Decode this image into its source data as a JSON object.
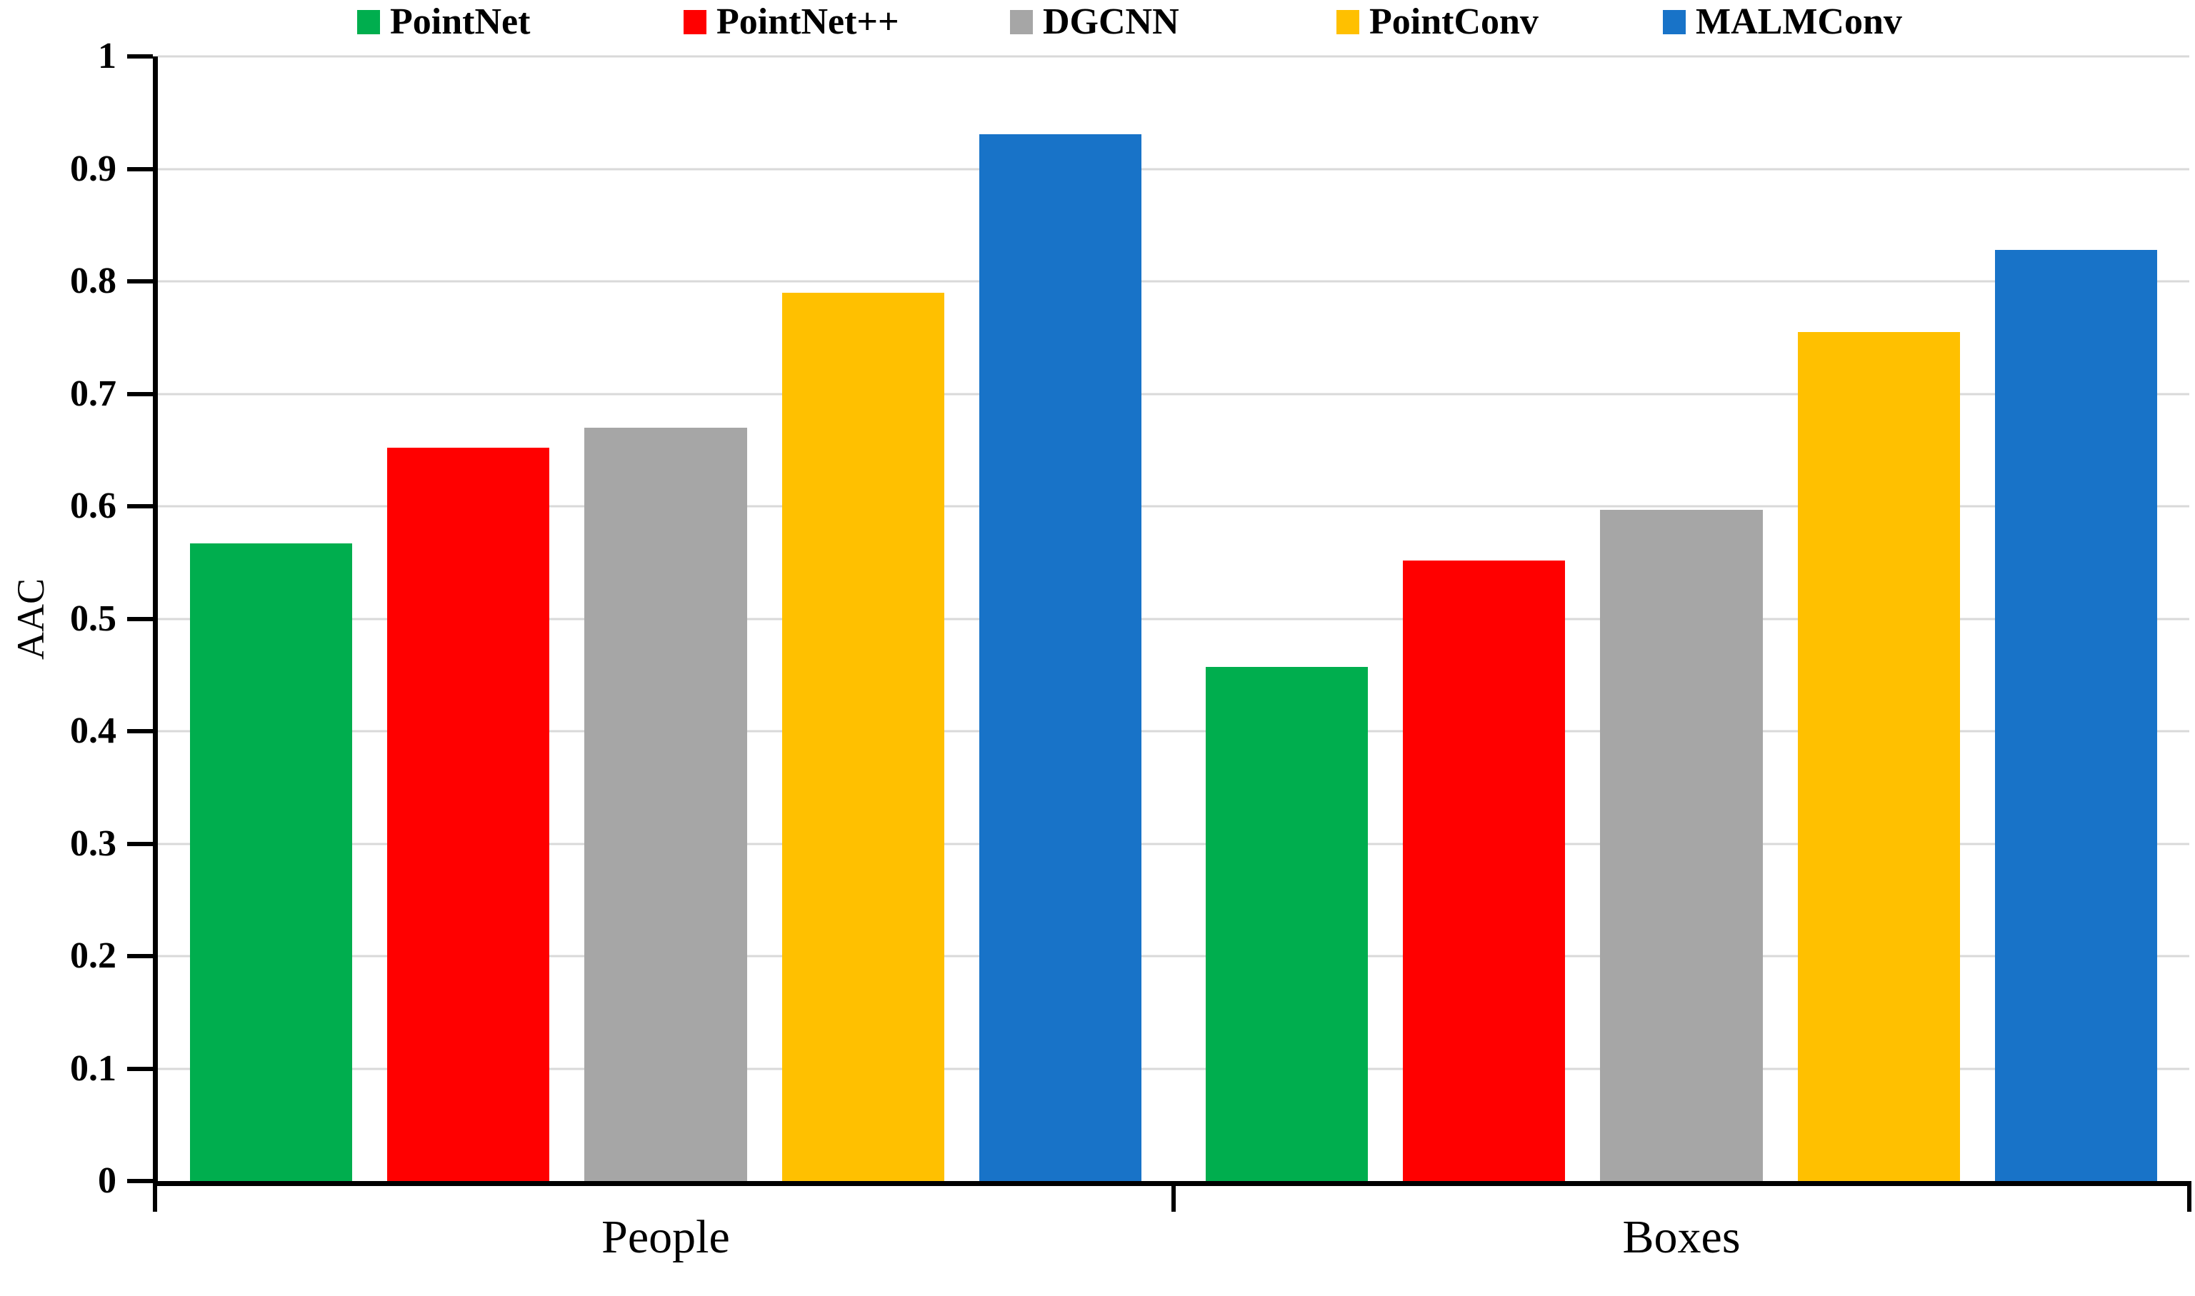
{
  "chart_data": {
    "type": "bar",
    "title": "",
    "categories": [
      "People",
      "Boxes"
    ],
    "series": [
      {
        "name": "PointNet",
        "color": "#00AE4E",
        "values": [
          0.567,
          0.457
        ]
      },
      {
        "name": "PointNet++",
        "color": "#FF0000",
        "values": [
          0.652,
          0.552
        ]
      },
      {
        "name": "DGCNN",
        "color": "#A6A6A6",
        "values": [
          0.67,
          0.597
        ]
      },
      {
        "name": "PointConv",
        "color": "#FFC000",
        "values": [
          0.79,
          0.755
        ]
      },
      {
        "name": "MALMConv",
        "color": "#1873C8",
        "values": [
          0.931,
          0.828
        ]
      }
    ],
    "xlabel": "",
    "ylabel": "AAC",
    "ylim": [
      0,
      1
    ],
    "yticks": [
      0,
      0.1,
      0.2,
      0.3,
      0.4,
      0.5,
      0.6,
      0.7,
      0.8,
      0.9,
      1
    ],
    "ytick_labels": [
      "0",
      "0.1",
      "0.2",
      "0.3",
      "0.4",
      "0.5",
      "0.6",
      "0.7",
      "0.8",
      "0.9",
      "1"
    ],
    "xtick_positions": [
      0,
      0.5,
      1
    ],
    "grid": true,
    "legend_position": "top",
    "axis_color": "#000000",
    "gridline_color": "#D9D9D9",
    "background_color": "#FFFFFF"
  }
}
